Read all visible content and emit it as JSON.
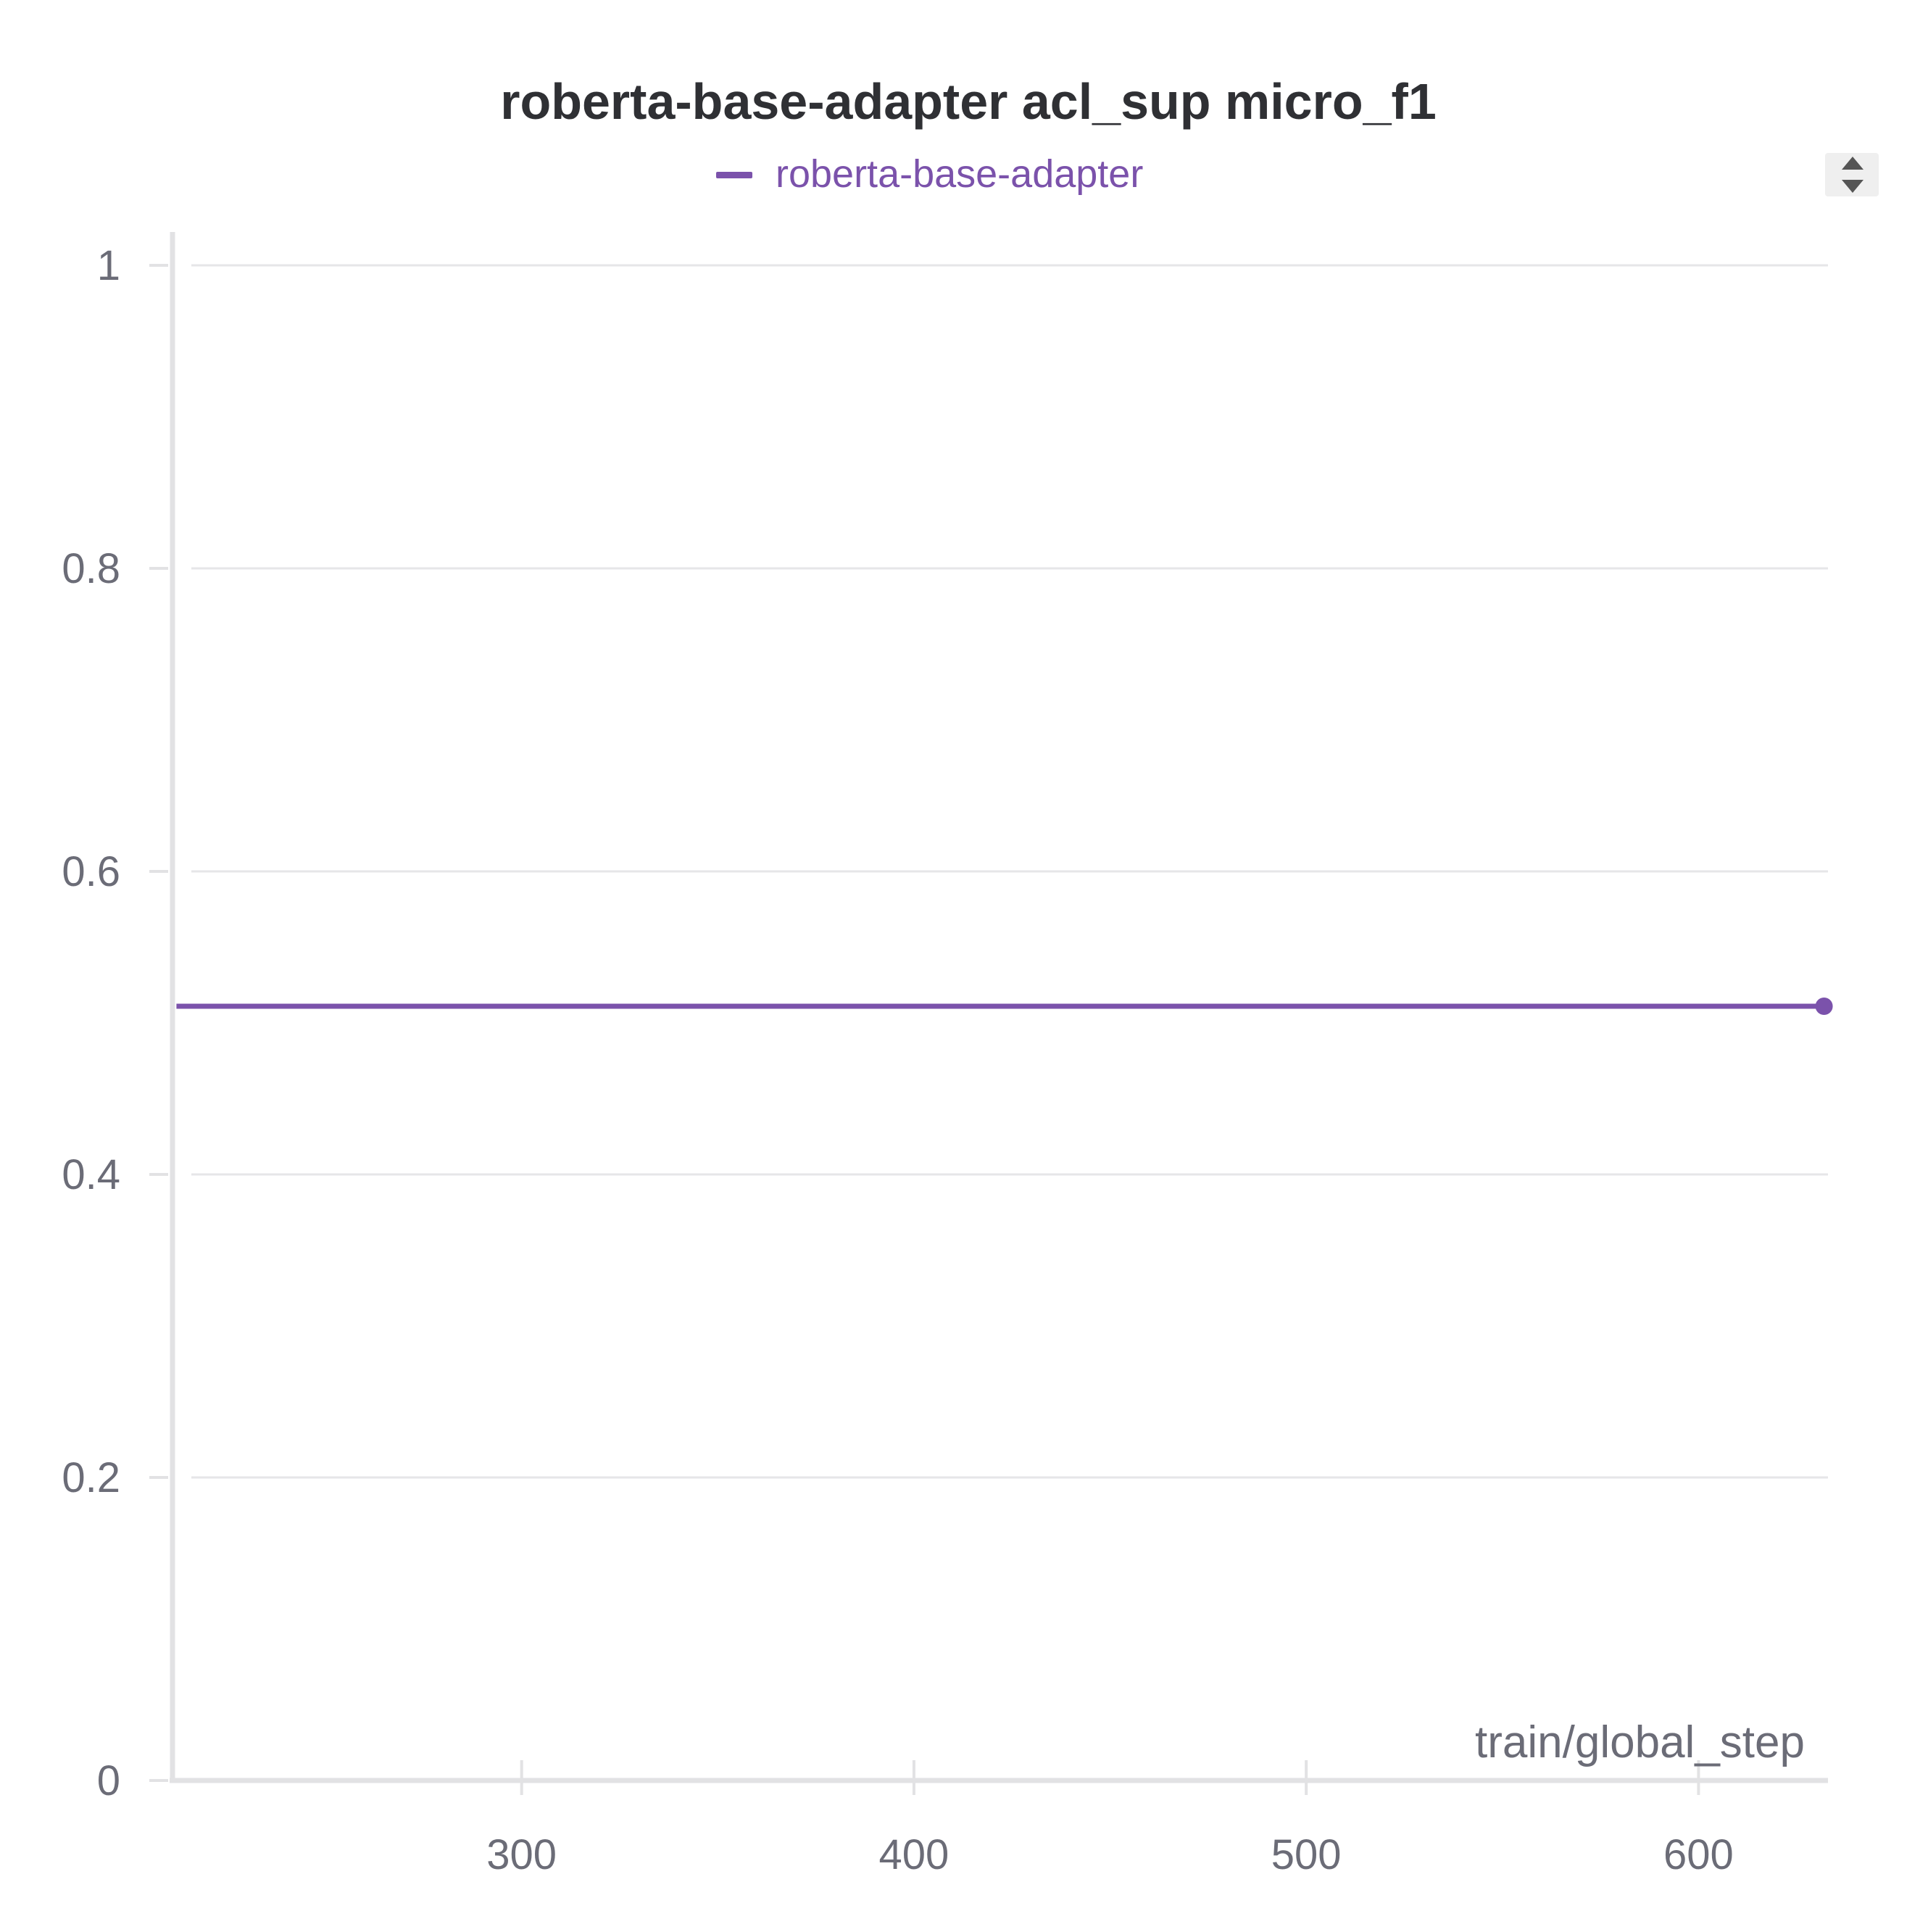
{
  "colors": {
    "series": "#7b52ab",
    "control_bg": "#efefef",
    "control_arrow": "#555555"
  },
  "controls": {
    "sort_icon": "sort-arrows-icon"
  },
  "chart_data": {
    "type": "line",
    "title": "roberta-base-adapter acl_sup micro_f1",
    "xlabel": "train/global_step",
    "ylabel": "",
    "xlim": [
      211,
      633
    ],
    "ylim": [
      0,
      1
    ],
    "x_ticks": [
      300,
      400,
      500,
      600
    ],
    "x_tick_labels": [
      "300",
      "400",
      "500",
      "600"
    ],
    "y_ticks": [
      0,
      0.2,
      0.4,
      0.6,
      0.8,
      1
    ],
    "y_tick_labels": [
      "0",
      "0.2",
      "0.4",
      "0.6",
      "0.8",
      "1"
    ],
    "grid": true,
    "legend_position": "top-center",
    "series": [
      {
        "name": "roberta-base-adapter",
        "x": [
          212,
          632
        ],
        "values": [
          0.511,
          0.511
        ],
        "marker_last_point": true
      }
    ]
  }
}
